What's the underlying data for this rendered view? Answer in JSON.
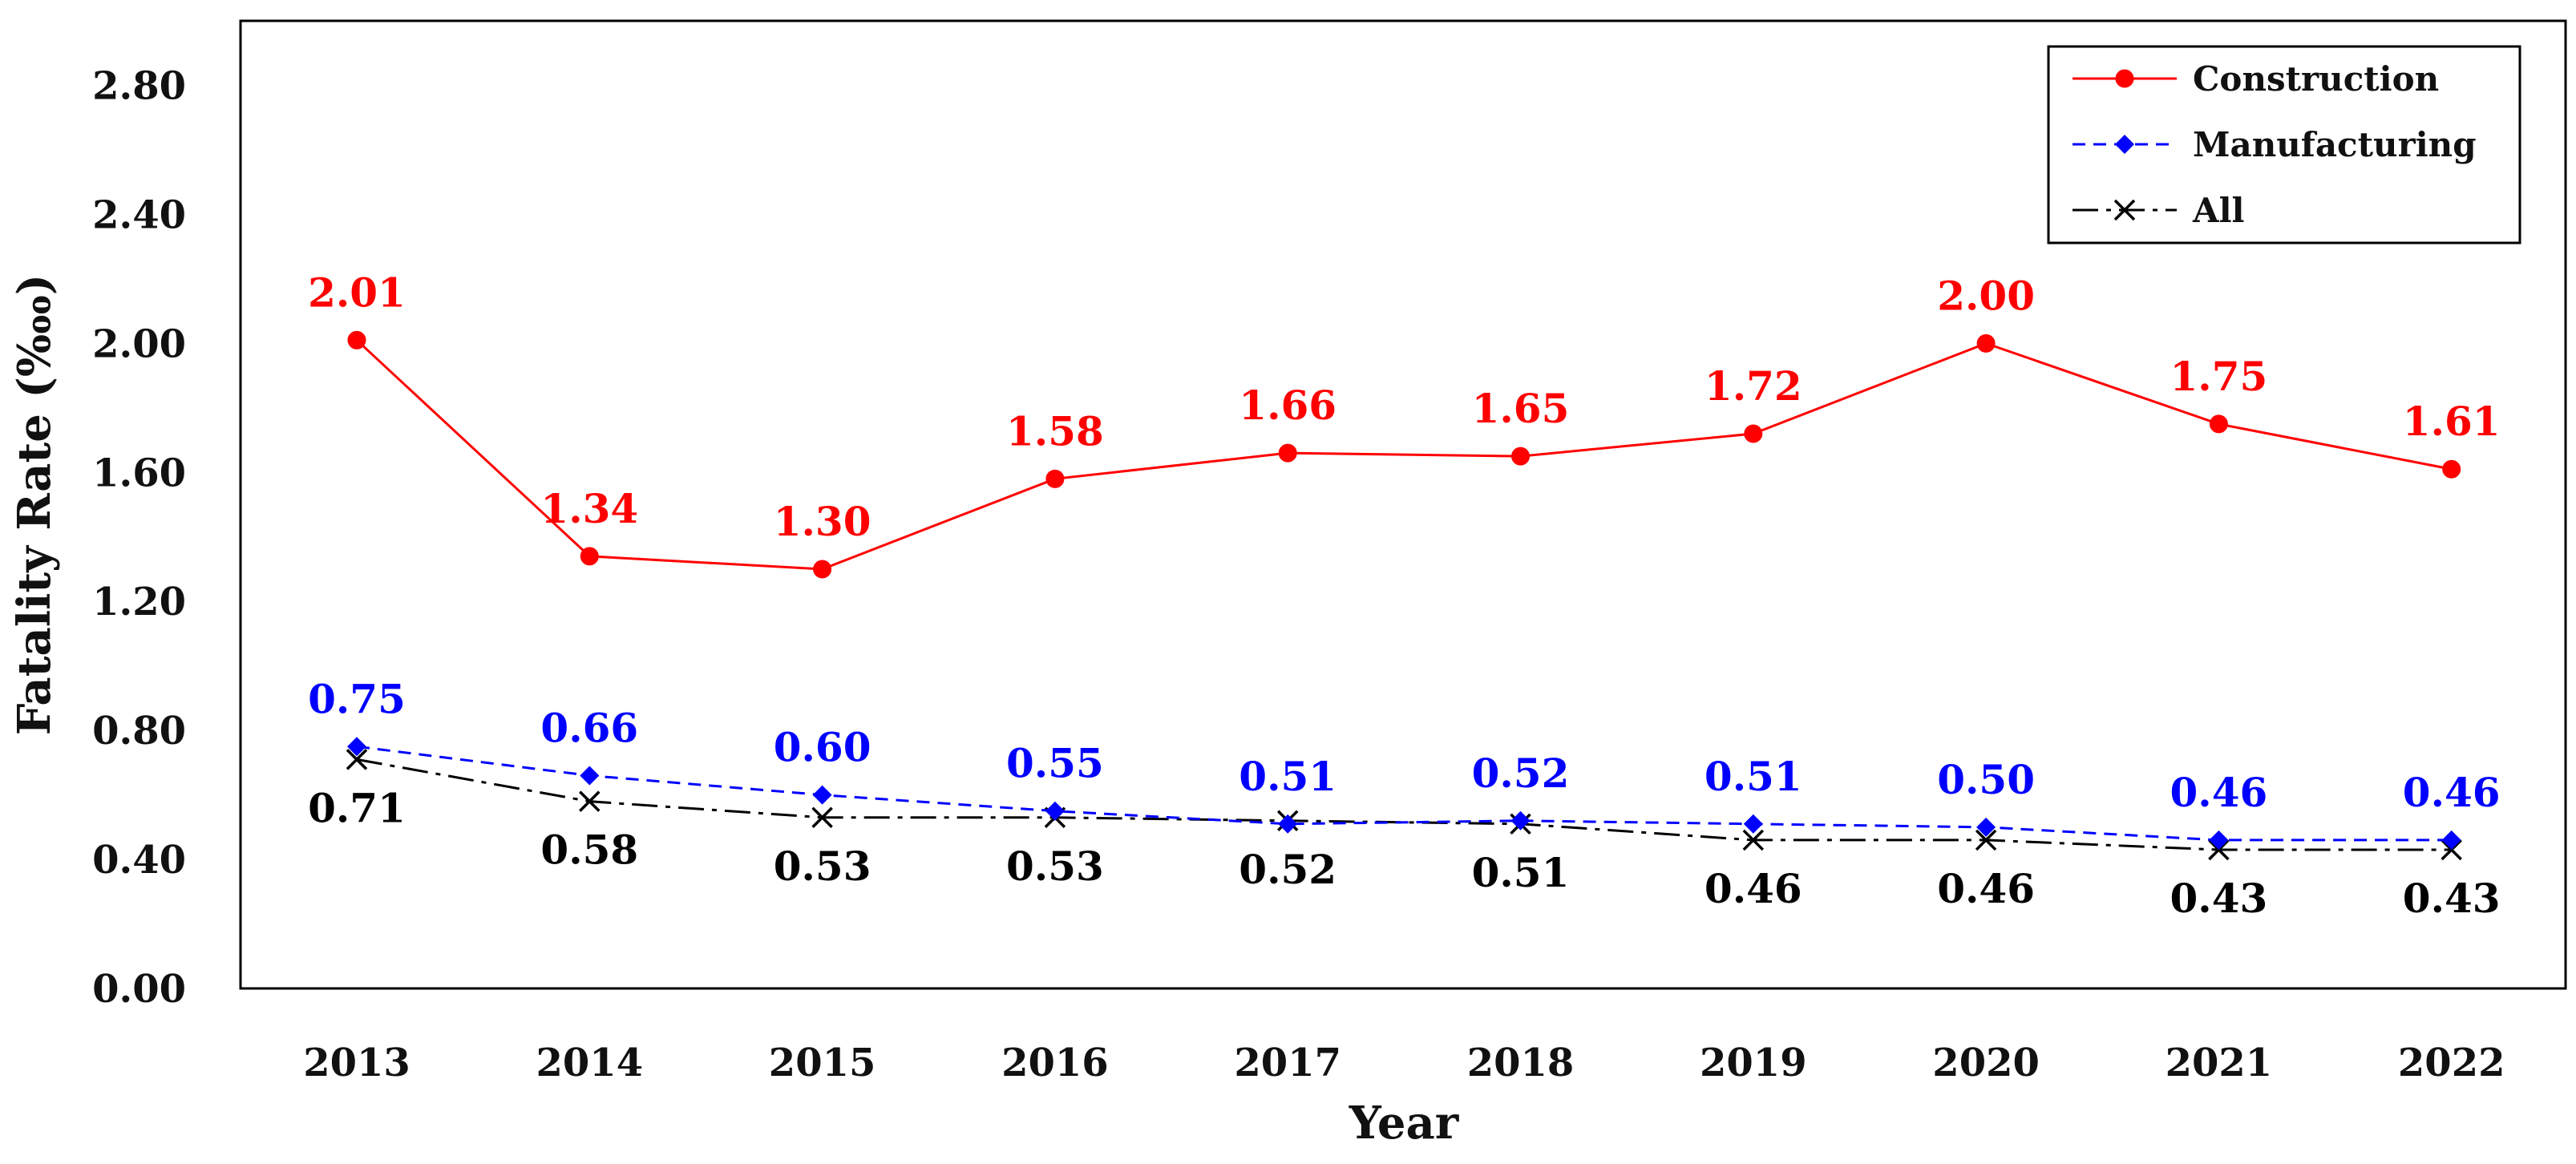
{
  "chart_data": {
    "type": "line",
    "title": "",
    "xlabel": "Year",
    "ylabel": "Fatality Rate (‱)",
    "x": [
      "2013",
      "2014",
      "2015",
      "2016",
      "2017",
      "2018",
      "2019",
      "2020",
      "2021",
      "2022"
    ],
    "ylim": [
      0,
      3.0
    ],
    "yticks": [
      "0.00",
      "0.40",
      "0.80",
      "1.20",
      "1.60",
      "2.00",
      "2.40",
      "2.80"
    ],
    "grid": false,
    "legend_position": "top-right",
    "series": [
      {
        "name": "Construction",
        "values": [
          2.01,
          1.34,
          1.3,
          1.58,
          1.66,
          1.65,
          1.72,
          2.0,
          1.75,
          1.61
        ],
        "labels": [
          "2.01",
          "1.34",
          "1.30",
          "1.58",
          "1.66",
          "1.65",
          "1.72",
          "2.00",
          "1.75",
          "1.61"
        ],
        "color": "#ff0000",
        "line_style": "solid",
        "marker": "circle",
        "label_position": "above"
      },
      {
        "name": "Manufacturing",
        "values": [
          0.75,
          0.66,
          0.6,
          0.55,
          0.51,
          0.52,
          0.51,
          0.5,
          0.46,
          0.46
        ],
        "labels": [
          "0.75",
          "0.66",
          "0.60",
          "0.55",
          "0.51",
          "0.52",
          "0.51",
          "0.50",
          "0.46",
          "0.46"
        ],
        "color": "#0000ff",
        "line_style": "dashed",
        "marker": "diamond",
        "label_position": "above"
      },
      {
        "name": "All",
        "values": [
          0.71,
          0.58,
          0.53,
          0.53,
          0.52,
          0.51,
          0.46,
          0.46,
          0.43,
          0.43
        ],
        "labels": [
          "0.71",
          "0.58",
          "0.53",
          "0.53",
          "0.52",
          "0.51",
          "0.46",
          "0.46",
          "0.43",
          "0.43"
        ],
        "color": "#000000",
        "line_style": "dash-dot",
        "marker": "x",
        "label_position": "below"
      }
    ]
  }
}
